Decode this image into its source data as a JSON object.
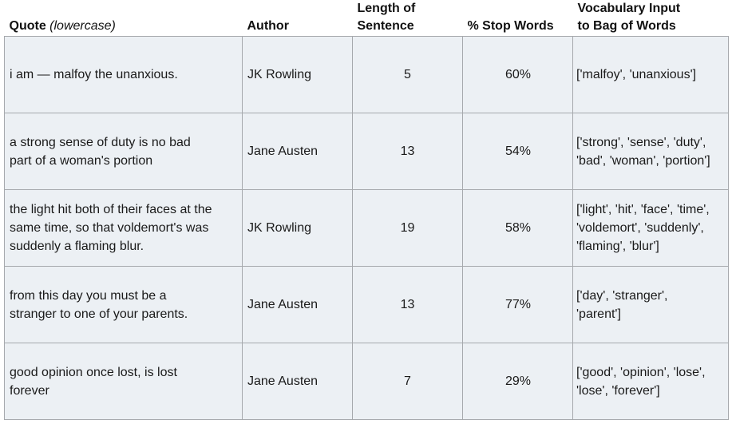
{
  "headers": {
    "quote_label": "Quote",
    "quote_note": "(lowercase)",
    "author": "Author",
    "length_line1": "Length of",
    "length_line2": "Sentence",
    "stop": "% Stop Words",
    "vocab_line1": "Vocabulary Input",
    "vocab_line2": "to Bag of Words"
  },
  "rows": [
    {
      "quote_lines": [
        "i am — malfoy the unanxious."
      ],
      "author": "JK Rowling",
      "length": "5",
      "stop": "60%",
      "vocab_lines": [
        "['malfoy', 'unanxious']"
      ]
    },
    {
      "quote_lines": [
        "a strong sense of duty is no bad",
        "part of a woman's portion"
      ],
      "author": "Jane Austen",
      "length": "13",
      "stop": "54%",
      "vocab_lines": [
        "['strong', 'sense', 'duty',",
        "'bad', 'woman', 'portion']"
      ]
    },
    {
      "quote_lines": [
        "the light hit both of their faces at the",
        "same time, so that voldemort's was",
        "suddenly a flaming blur."
      ],
      "author": "JK Rowling",
      "length": "19",
      "stop": "58%",
      "vocab_lines": [
        "['light', 'hit', 'face', 'time',",
        "'voldemort', 'suddenly',",
        "'flaming', 'blur']"
      ]
    },
    {
      "quote_lines": [
        "from this day you must be a",
        "stranger to one of your parents."
      ],
      "author": "Jane Austen",
      "length": "13",
      "stop": "77%",
      "vocab_lines": [
        "['day', 'stranger',",
        "'parent']"
      ]
    },
    {
      "quote_lines": [
        "good opinion once lost, is lost",
        "forever"
      ],
      "author": "Jane Austen",
      "length": "7",
      "stop": "29%",
      "vocab_lines": [
        "['good', 'opinion', 'lose',",
        "'lose', 'forever']"
      ]
    }
  ]
}
